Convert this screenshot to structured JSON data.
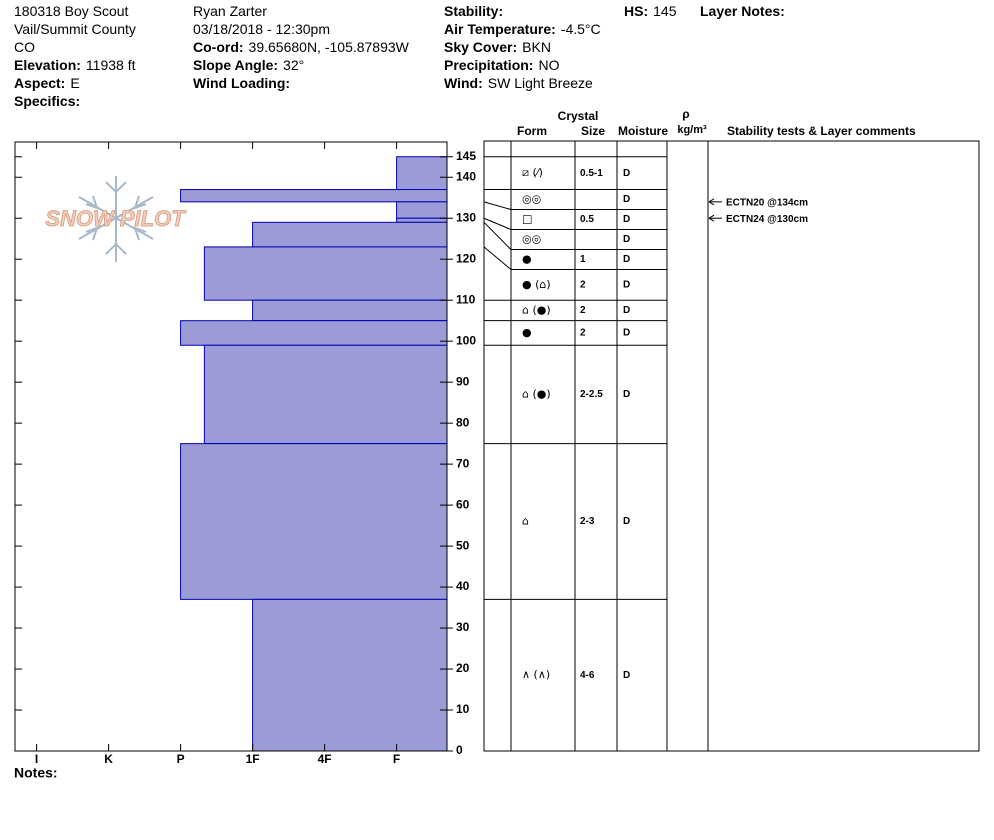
{
  "header": {
    "columns": [
      [
        {
          "value": "180318 Boy Scout"
        },
        {
          "value": "Vail/Summit County"
        },
        {
          "value": "CO"
        },
        {
          "label": "Elevation:",
          "value": "11938 ft"
        },
        {
          "label": "Aspect:",
          "value": "E"
        },
        {
          "label": "Specifics:"
        }
      ],
      [
        {
          "value": "Ryan Zarter"
        },
        {
          "value": "03/18/2018 - 12:30pm"
        },
        {
          "label": "Co-ord:",
          "value": "39.65680N, -105.87893W"
        },
        {
          "label": "Slope Angle:",
          "value": "32°"
        },
        {
          "label": "Wind Loading:"
        }
      ],
      [
        {
          "label": "Stability:"
        },
        {
          "label": "Air Temperature:",
          "value": "-4.5°C"
        },
        {
          "label": "Sky Cover:",
          "value": "BKN"
        },
        {
          "label": "Precipitation:",
          "value": "NO"
        },
        {
          "label": "Wind:",
          "value": "SW Light Breeze"
        }
      ],
      [
        {
          "label": "HS:",
          "value": "145"
        }
      ],
      [
        {
          "label": "Layer Notes:"
        }
      ]
    ]
  },
  "logo": "SNOW PILOT",
  "chart_data": {
    "type": "bar",
    "orientation": "horizontal",
    "color": "#9b9bd7",
    "edge_color": "#0000b0",
    "xlim": [
      6.3,
      0.3
    ],
    "xticks": [
      {
        "value": 6,
        "label": "I"
      },
      {
        "value": 5,
        "label": "K"
      },
      {
        "value": 4,
        "label": "P"
      },
      {
        "value": 3,
        "label": "1F"
      },
      {
        "value": 2,
        "label": "4F"
      },
      {
        "value": 1,
        "label": "F"
      }
    ],
    "ylim": [
      0,
      148.6
    ],
    "yticks": [
      0,
      10,
      20,
      30,
      40,
      50,
      60,
      70,
      80,
      90,
      100,
      110,
      120,
      130,
      140,
      145
    ],
    "layers": [
      {
        "top": 145,
        "bottom": 137,
        "hardness": 1,
        "form": "⧄ (⁄)",
        "size": "0.5-1",
        "moisture": "D"
      },
      {
        "top": 137,
        "bottom": 134,
        "hardness": 4,
        "form": "◎◎",
        "moisture": "D"
      },
      {
        "top": 134,
        "bottom": 130,
        "hardness": 1,
        "form": "□",
        "size": "0.5",
        "moisture": "D"
      },
      {
        "top": 130,
        "bottom": 129,
        "hardness": 1,
        "form": "◎◎",
        "moisture": "D"
      },
      {
        "top": 129,
        "bottom": 123,
        "hardness": 3,
        "form": "●",
        "size": "1",
        "moisture": "D"
      },
      {
        "top": 123,
        "bottom": 110,
        "hardness": 3.67,
        "form": "● (⌂)",
        "size": "2",
        "moisture": "D"
      },
      {
        "top": 110,
        "bottom": 105,
        "hardness": 3,
        "form": "⌂ (●)",
        "size": "2",
        "moisture": "D"
      },
      {
        "top": 105,
        "bottom": 99,
        "hardness": 4,
        "form": "●",
        "size": "2",
        "moisture": "D"
      },
      {
        "top": 99,
        "bottom": 75,
        "hardness": 3.67,
        "form": "⌂ (●)",
        "size": "2-2.5",
        "moisture": "D"
      },
      {
        "top": 75,
        "bottom": 37,
        "hardness": 4,
        "form": "⌂",
        "size": "2-3",
        "moisture": "D"
      },
      {
        "top": 37,
        "bottom": 0,
        "hardness": 3,
        "form": "∧ (∧)",
        "size": "4-6",
        "moisture": "D"
      }
    ],
    "tests": [
      {
        "height": 134,
        "label": "ECTN20 @134cm"
      },
      {
        "height": 130,
        "label": "ECTN24 @130cm"
      }
    ]
  },
  "table": {
    "crystal": "Crystal",
    "form": "Form",
    "size": "Size",
    "moisture": "Moisture",
    "rho": "ρ",
    "density_unit": "kg/m³",
    "comments": "Stability tests & Layer comments"
  },
  "notes": "Notes:"
}
